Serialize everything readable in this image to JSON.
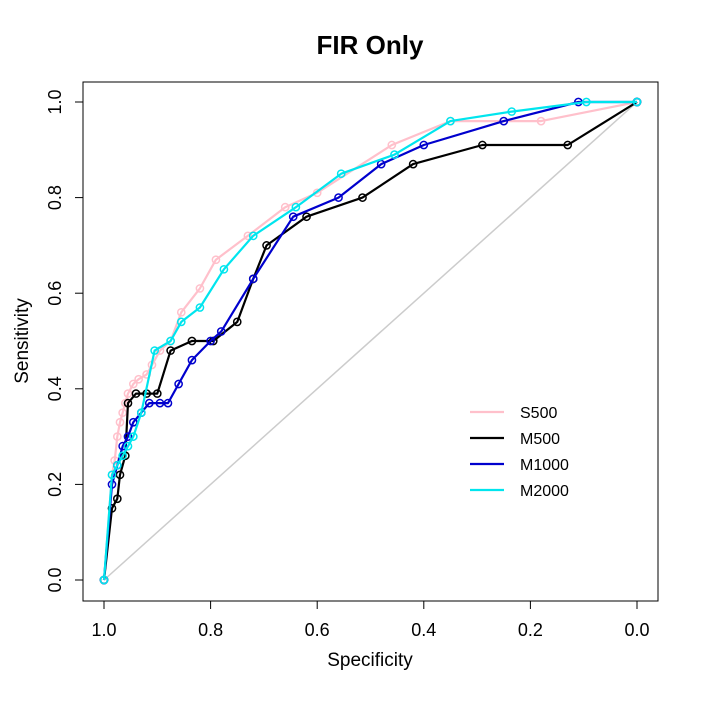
{
  "chart_data": {
    "type": "line",
    "title": "FIR Only",
    "xlabel": "Specificity",
    "ylabel": "Sensitivity",
    "xlim": [
      1.0,
      0.0
    ],
    "ylim": [
      0.0,
      1.0
    ],
    "x_reversed": true,
    "xticks": [
      "1.0",
      "0.8",
      "0.6",
      "0.4",
      "0.2",
      "0.0"
    ],
    "yticks": [
      "0.0",
      "0.2",
      "0.4",
      "0.6",
      "0.8",
      "1.0"
    ],
    "grid": false,
    "legend_position": "right",
    "diagonal_color": "#cccccc",
    "series": [
      {
        "name": "S500",
        "color": "#ffc0cb",
        "x": [
          1.0,
          0.985,
          0.98,
          0.975,
          0.97,
          0.965,
          0.96,
          0.955,
          0.945,
          0.935,
          0.92,
          0.91,
          0.895,
          0.875,
          0.855,
          0.82,
          0.79,
          0.73,
          0.66,
          0.6,
          0.46,
          0.35,
          0.18,
          0.0
        ],
        "y": [
          0.0,
          0.22,
          0.25,
          0.3,
          0.33,
          0.35,
          0.37,
          0.39,
          0.41,
          0.42,
          0.43,
          0.45,
          0.48,
          0.5,
          0.56,
          0.61,
          0.67,
          0.72,
          0.78,
          0.81,
          0.91,
          0.96,
          0.96,
          1.0
        ]
      },
      {
        "name": "M500",
        "color": "#000000",
        "x": [
          1.0,
          0.985,
          0.975,
          0.97,
          0.96,
          0.955,
          0.94,
          0.92,
          0.9,
          0.875,
          0.835,
          0.795,
          0.75,
          0.72,
          0.695,
          0.62,
          0.515,
          0.42,
          0.29,
          0.13,
          0.0
        ],
        "y": [
          0.0,
          0.15,
          0.17,
          0.22,
          0.26,
          0.37,
          0.39,
          0.39,
          0.39,
          0.48,
          0.5,
          0.5,
          0.54,
          0.63,
          0.7,
          0.76,
          0.8,
          0.87,
          0.91,
          0.91,
          1.0
        ]
      },
      {
        "name": "M1000",
        "color": "#0000cd",
        "x": [
          1.0,
          0.985,
          0.975,
          0.965,
          0.955,
          0.945,
          0.93,
          0.915,
          0.895,
          0.88,
          0.86,
          0.835,
          0.8,
          0.78,
          0.72,
          0.645,
          0.56,
          0.48,
          0.4,
          0.25,
          0.11,
          0.0
        ],
        "y": [
          0.0,
          0.2,
          0.24,
          0.28,
          0.3,
          0.33,
          0.35,
          0.37,
          0.37,
          0.37,
          0.41,
          0.46,
          0.5,
          0.52,
          0.63,
          0.76,
          0.8,
          0.87,
          0.91,
          0.96,
          1.0,
          1.0
        ]
      },
      {
        "name": "M2000",
        "color": "#00e5ee",
        "x": [
          1.0,
          0.985,
          0.975,
          0.965,
          0.955,
          0.945,
          0.93,
          0.905,
          0.875,
          0.855,
          0.82,
          0.775,
          0.72,
          0.64,
          0.555,
          0.455,
          0.35,
          0.235,
          0.095,
          0.0
        ],
        "y": [
          0.0,
          0.22,
          0.24,
          0.26,
          0.28,
          0.3,
          0.35,
          0.48,
          0.5,
          0.54,
          0.57,
          0.65,
          0.72,
          0.78,
          0.85,
          0.89,
          0.96,
          0.98,
          1.0,
          1.0
        ]
      }
    ]
  }
}
